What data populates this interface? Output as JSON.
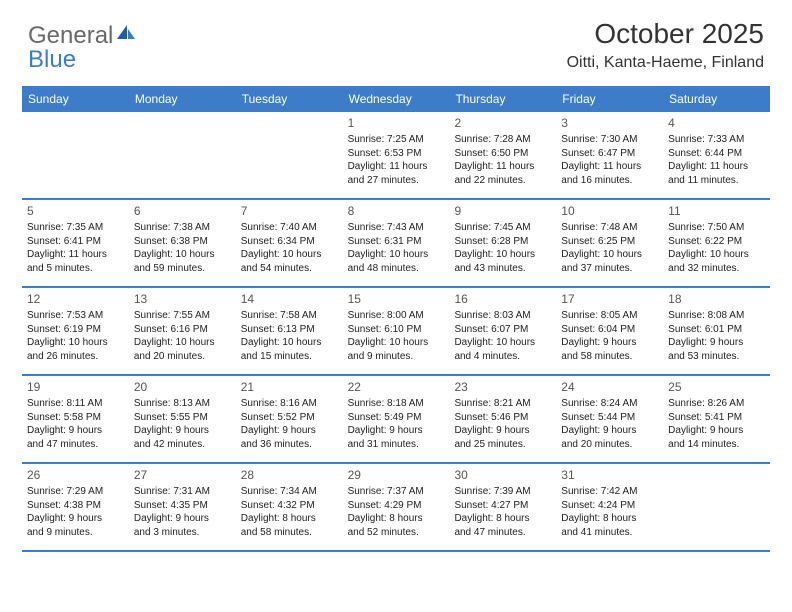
{
  "logo": {
    "part1": "General",
    "part2": "Blue"
  },
  "title": "October 2025",
  "location": "Oitti, Kanta-Haeme, Finland",
  "colors": {
    "accent": "#3d7cc9",
    "text": "#222222",
    "heading": "#333333",
    "logo_gray": "#6a6a6a",
    "background": "#ffffff"
  },
  "day_headers": [
    "Sunday",
    "Monday",
    "Tuesday",
    "Wednesday",
    "Thursday",
    "Friday",
    "Saturday"
  ],
  "weeks": [
    [
      {
        "day": "",
        "lines": [
          "",
          "",
          "",
          ""
        ]
      },
      {
        "day": "",
        "lines": [
          "",
          "",
          "",
          ""
        ]
      },
      {
        "day": "",
        "lines": [
          "",
          "",
          "",
          ""
        ]
      },
      {
        "day": "1",
        "lines": [
          "Sunrise: 7:25 AM",
          "Sunset: 6:53 PM",
          "Daylight: 11 hours",
          "and 27 minutes."
        ]
      },
      {
        "day": "2",
        "lines": [
          "Sunrise: 7:28 AM",
          "Sunset: 6:50 PM",
          "Daylight: 11 hours",
          "and 22 minutes."
        ]
      },
      {
        "day": "3",
        "lines": [
          "Sunrise: 7:30 AM",
          "Sunset: 6:47 PM",
          "Daylight: 11 hours",
          "and 16 minutes."
        ]
      },
      {
        "day": "4",
        "lines": [
          "Sunrise: 7:33 AM",
          "Sunset: 6:44 PM",
          "Daylight: 11 hours",
          "and 11 minutes."
        ]
      }
    ],
    [
      {
        "day": "5",
        "lines": [
          "Sunrise: 7:35 AM",
          "Sunset: 6:41 PM",
          "Daylight: 11 hours",
          "and 5 minutes."
        ]
      },
      {
        "day": "6",
        "lines": [
          "Sunrise: 7:38 AM",
          "Sunset: 6:38 PM",
          "Daylight: 10 hours",
          "and 59 minutes."
        ]
      },
      {
        "day": "7",
        "lines": [
          "Sunrise: 7:40 AM",
          "Sunset: 6:34 PM",
          "Daylight: 10 hours",
          "and 54 minutes."
        ]
      },
      {
        "day": "8",
        "lines": [
          "Sunrise: 7:43 AM",
          "Sunset: 6:31 PM",
          "Daylight: 10 hours",
          "and 48 minutes."
        ]
      },
      {
        "day": "9",
        "lines": [
          "Sunrise: 7:45 AM",
          "Sunset: 6:28 PM",
          "Daylight: 10 hours",
          "and 43 minutes."
        ]
      },
      {
        "day": "10",
        "lines": [
          "Sunrise: 7:48 AM",
          "Sunset: 6:25 PM",
          "Daylight: 10 hours",
          "and 37 minutes."
        ]
      },
      {
        "day": "11",
        "lines": [
          "Sunrise: 7:50 AM",
          "Sunset: 6:22 PM",
          "Daylight: 10 hours",
          "and 32 minutes."
        ]
      }
    ],
    [
      {
        "day": "12",
        "lines": [
          "Sunrise: 7:53 AM",
          "Sunset: 6:19 PM",
          "Daylight: 10 hours",
          "and 26 minutes."
        ]
      },
      {
        "day": "13",
        "lines": [
          "Sunrise: 7:55 AM",
          "Sunset: 6:16 PM",
          "Daylight: 10 hours",
          "and 20 minutes."
        ]
      },
      {
        "day": "14",
        "lines": [
          "Sunrise: 7:58 AM",
          "Sunset: 6:13 PM",
          "Daylight: 10 hours",
          "and 15 minutes."
        ]
      },
      {
        "day": "15",
        "lines": [
          "Sunrise: 8:00 AM",
          "Sunset: 6:10 PM",
          "Daylight: 10 hours",
          "and 9 minutes."
        ]
      },
      {
        "day": "16",
        "lines": [
          "Sunrise: 8:03 AM",
          "Sunset: 6:07 PM",
          "Daylight: 10 hours",
          "and 4 minutes."
        ]
      },
      {
        "day": "17",
        "lines": [
          "Sunrise: 8:05 AM",
          "Sunset: 6:04 PM",
          "Daylight: 9 hours",
          "and 58 minutes."
        ]
      },
      {
        "day": "18",
        "lines": [
          "Sunrise: 8:08 AM",
          "Sunset: 6:01 PM",
          "Daylight: 9 hours",
          "and 53 minutes."
        ]
      }
    ],
    [
      {
        "day": "19",
        "lines": [
          "Sunrise: 8:11 AM",
          "Sunset: 5:58 PM",
          "Daylight: 9 hours",
          "and 47 minutes."
        ]
      },
      {
        "day": "20",
        "lines": [
          "Sunrise: 8:13 AM",
          "Sunset: 5:55 PM",
          "Daylight: 9 hours",
          "and 42 minutes."
        ]
      },
      {
        "day": "21",
        "lines": [
          "Sunrise: 8:16 AM",
          "Sunset: 5:52 PM",
          "Daylight: 9 hours",
          "and 36 minutes."
        ]
      },
      {
        "day": "22",
        "lines": [
          "Sunrise: 8:18 AM",
          "Sunset: 5:49 PM",
          "Daylight: 9 hours",
          "and 31 minutes."
        ]
      },
      {
        "day": "23",
        "lines": [
          "Sunrise: 8:21 AM",
          "Sunset: 5:46 PM",
          "Daylight: 9 hours",
          "and 25 minutes."
        ]
      },
      {
        "day": "24",
        "lines": [
          "Sunrise: 8:24 AM",
          "Sunset: 5:44 PM",
          "Daylight: 9 hours",
          "and 20 minutes."
        ]
      },
      {
        "day": "25",
        "lines": [
          "Sunrise: 8:26 AM",
          "Sunset: 5:41 PM",
          "Daylight: 9 hours",
          "and 14 minutes."
        ]
      }
    ],
    [
      {
        "day": "26",
        "lines": [
          "Sunrise: 7:29 AM",
          "Sunset: 4:38 PM",
          "Daylight: 9 hours",
          "and 9 minutes."
        ]
      },
      {
        "day": "27",
        "lines": [
          "Sunrise: 7:31 AM",
          "Sunset: 4:35 PM",
          "Daylight: 9 hours",
          "and 3 minutes."
        ]
      },
      {
        "day": "28",
        "lines": [
          "Sunrise: 7:34 AM",
          "Sunset: 4:32 PM",
          "Daylight: 8 hours",
          "and 58 minutes."
        ]
      },
      {
        "day": "29",
        "lines": [
          "Sunrise: 7:37 AM",
          "Sunset: 4:29 PM",
          "Daylight: 8 hours",
          "and 52 minutes."
        ]
      },
      {
        "day": "30",
        "lines": [
          "Sunrise: 7:39 AM",
          "Sunset: 4:27 PM",
          "Daylight: 8 hours",
          "and 47 minutes."
        ]
      },
      {
        "day": "31",
        "lines": [
          "Sunrise: 7:42 AM",
          "Sunset: 4:24 PM",
          "Daylight: 8 hours",
          "and 41 minutes."
        ]
      },
      {
        "day": "",
        "lines": [
          "",
          "",
          "",
          ""
        ]
      }
    ]
  ]
}
